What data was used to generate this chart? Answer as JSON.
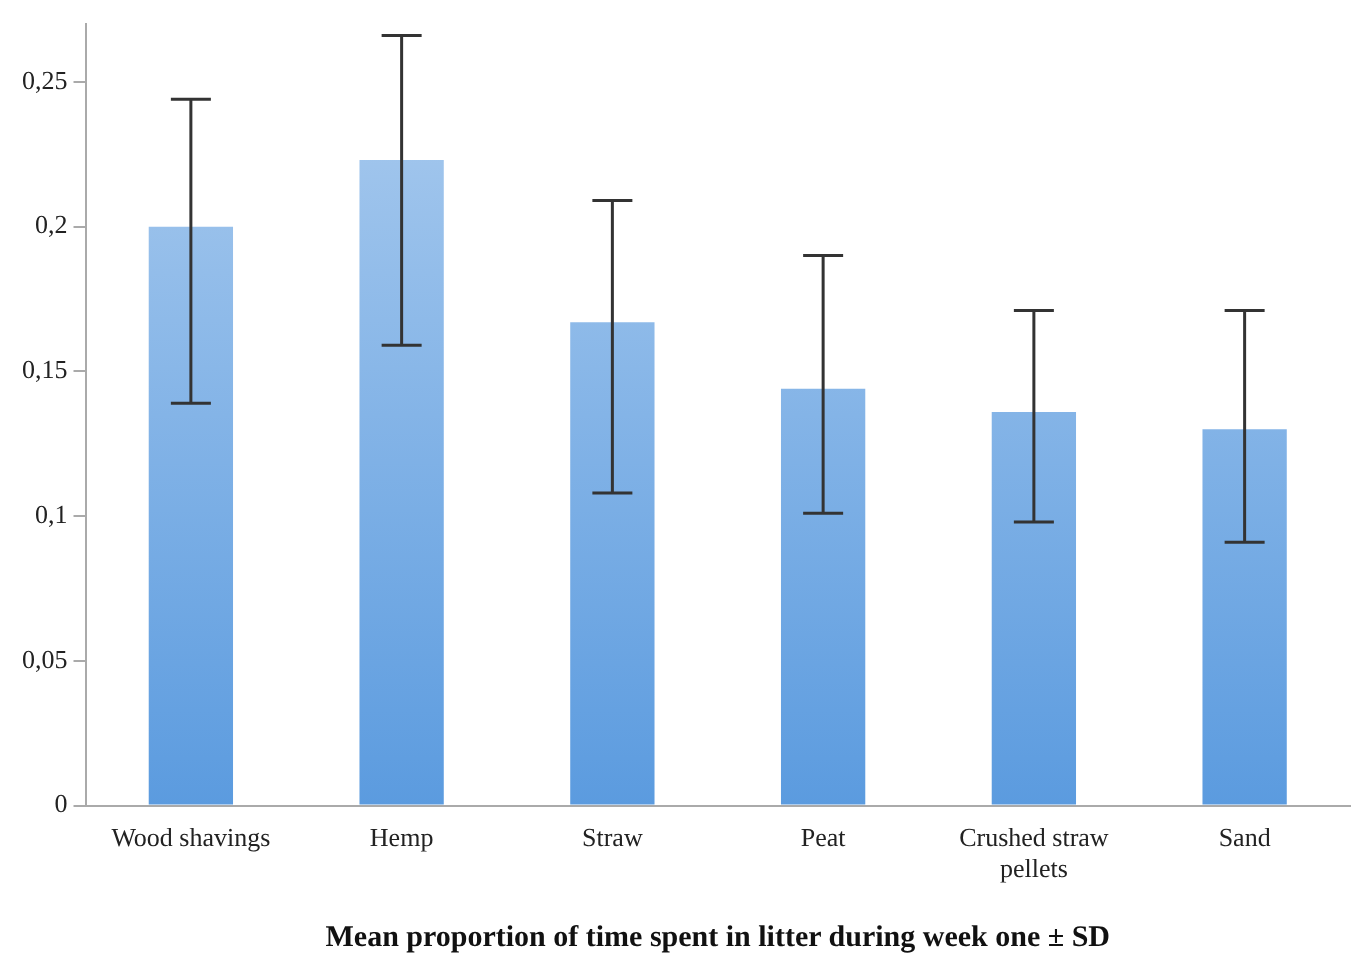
{
  "chart_data": {
    "type": "bar",
    "xlabel": "Mean proportion of time spent in litter during week one ± SD",
    "categories": [
      "Wood shavings",
      "Hemp",
      "Straw",
      "Peat",
      "Crushed straw pellets",
      "Sand"
    ],
    "values": [
      0.2,
      0.223,
      0.167,
      0.144,
      0.136,
      0.13
    ],
    "errors": [
      [
        0.139,
        0.244
      ],
      [
        0.159,
        0.266
      ],
      [
        0.108,
        0.209
      ],
      [
        0.101,
        0.19
      ],
      [
        0.098,
        0.171
      ],
      [
        0.091,
        0.171
      ]
    ],
    "color": "#5b9bdf",
    "ylim": [
      0,
      0.27
    ],
    "yticks": [
      {
        "value": 0,
        "label": "0"
      },
      {
        "value": 0.05,
        "label": "0,05"
      },
      {
        "value": 0.1,
        "label": "0,1"
      },
      {
        "value": 0.15,
        "label": "0,15"
      },
      {
        "value": 0.2,
        "label": "0,2"
      },
      {
        "value": 0.25,
        "label": "0,25"
      }
    ],
    "grid": false,
    "legend": false
  }
}
